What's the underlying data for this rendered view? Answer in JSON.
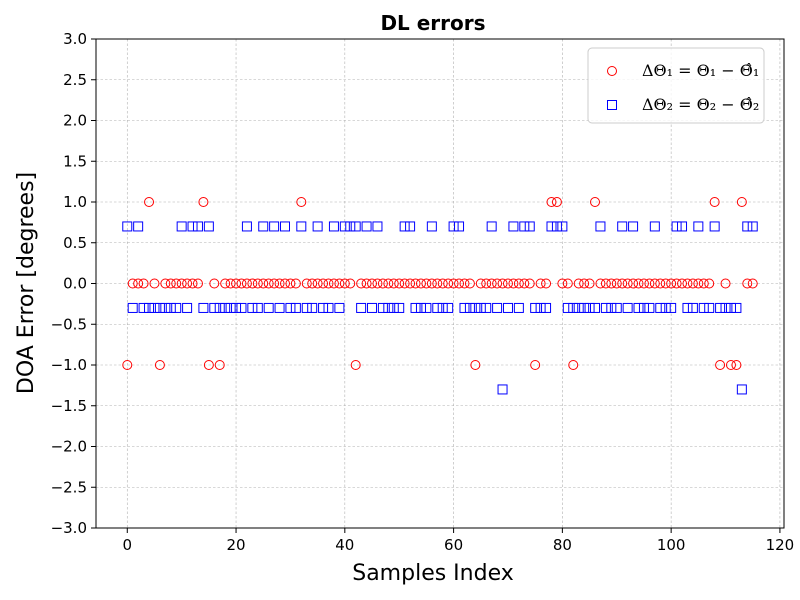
{
  "chart_data": {
    "type": "scatter",
    "title": "DL errors",
    "xlabel": "Samples Index",
    "ylabel": "DOA Error [degrees]",
    "xlim": [
      -5.75,
      120.75
    ],
    "ylim": [
      -3.0,
      3.0
    ],
    "xticks": [
      "0",
      "20",
      "40",
      "60",
      "80",
      "100",
      "120"
    ],
    "yticks": [
      "−3.0",
      "−2.5",
      "−2.0",
      "−1.5",
      "−1.0",
      "−0.5",
      "0.0",
      "0.5",
      "1.0",
      "1.5",
      "2.0",
      "2.5",
      "3.0"
    ],
    "grid": true,
    "legend_position": "top-right",
    "series": [
      {
        "name": "ΔΘ₁ = Θ₁ − Θ̂₁",
        "marker": "circle",
        "color": "#ff0000",
        "values": [
          -1,
          0,
          0,
          0,
          1,
          0,
          -1,
          0,
          0,
          0,
          0,
          0,
          0,
          0,
          1,
          -1,
          0,
          -1,
          0,
          0,
          0,
          0,
          0,
          0,
          0,
          0,
          0,
          0,
          0,
          0,
          0,
          0,
          1,
          0,
          0,
          0,
          0,
          0,
          0,
          0,
          0,
          0,
          -1,
          0,
          0,
          0,
          0,
          0,
          0,
          0,
          0,
          0,
          0,
          0,
          0,
          0,
          0,
          0,
          0,
          0,
          0,
          0,
          0,
          0,
          -1,
          0,
          0,
          0,
          0,
          0,
          0,
          0,
          0,
          0,
          0,
          -1,
          0,
          0,
          1,
          1,
          0,
          0,
          -1,
          0,
          0,
          0,
          1,
          0,
          0,
          0,
          0,
          0,
          0,
          0,
          0,
          0,
          0,
          0,
          0,
          0,
          0,
          0,
          0,
          0,
          0,
          0,
          0,
          0,
          1,
          -1,
          0,
          -1,
          -1,
          1,
          0,
          0
        ]
      },
      {
        "name": "ΔΘ₂ = Θ₂ − Θ̂₂",
        "marker": "square",
        "color": "#0000ff",
        "values": [
          0.7,
          -0.3,
          0.7,
          -0.3,
          -0.3,
          -0.3,
          -0.3,
          -0.3,
          -0.3,
          -0.3,
          0.7,
          -0.3,
          0.7,
          0.7,
          -0.3,
          0.7,
          -0.3,
          -0.3,
          -0.3,
          -0.3,
          -0.3,
          -0.3,
          0.7,
          -0.3,
          -0.3,
          0.7,
          -0.3,
          0.7,
          -0.3,
          0.7,
          -0.3,
          -0.3,
          0.7,
          -0.3,
          -0.3,
          0.7,
          -0.3,
          -0.3,
          0.7,
          -0.3,
          0.7,
          0.7,
          0.7,
          -0.3,
          0.7,
          -0.3,
          0.7,
          -0.3,
          -0.3,
          -0.3,
          -0.3,
          0.7,
          0.7,
          -0.3,
          -0.3,
          -0.3,
          0.7,
          -0.3,
          -0.3,
          -0.3,
          0.7,
          0.7,
          -0.3,
          -0.3,
          -0.3,
          -0.3,
          -0.3,
          0.7,
          -0.3,
          -1.3,
          -0.3,
          0.7,
          -0.3,
          0.7,
          0.7,
          -0.3,
          -0.3,
          -0.3,
          0.7,
          0.7,
          0.7,
          -0.3,
          -0.3,
          -0.3,
          -0.3,
          -0.3,
          -0.3,
          0.7,
          -0.3,
          -0.3,
          -0.3,
          0.7,
          -0.3,
          0.7,
          -0.3,
          -0.3,
          -0.3,
          0.7,
          -0.3,
          -0.3,
          -0.3,
          0.7,
          0.7,
          -0.3,
          -0.3,
          0.7,
          -0.3,
          -0.3,
          0.7,
          -0.3,
          -0.3,
          -0.3,
          -0.3,
          -1.3,
          0.7,
          0.7
        ]
      }
    ]
  }
}
